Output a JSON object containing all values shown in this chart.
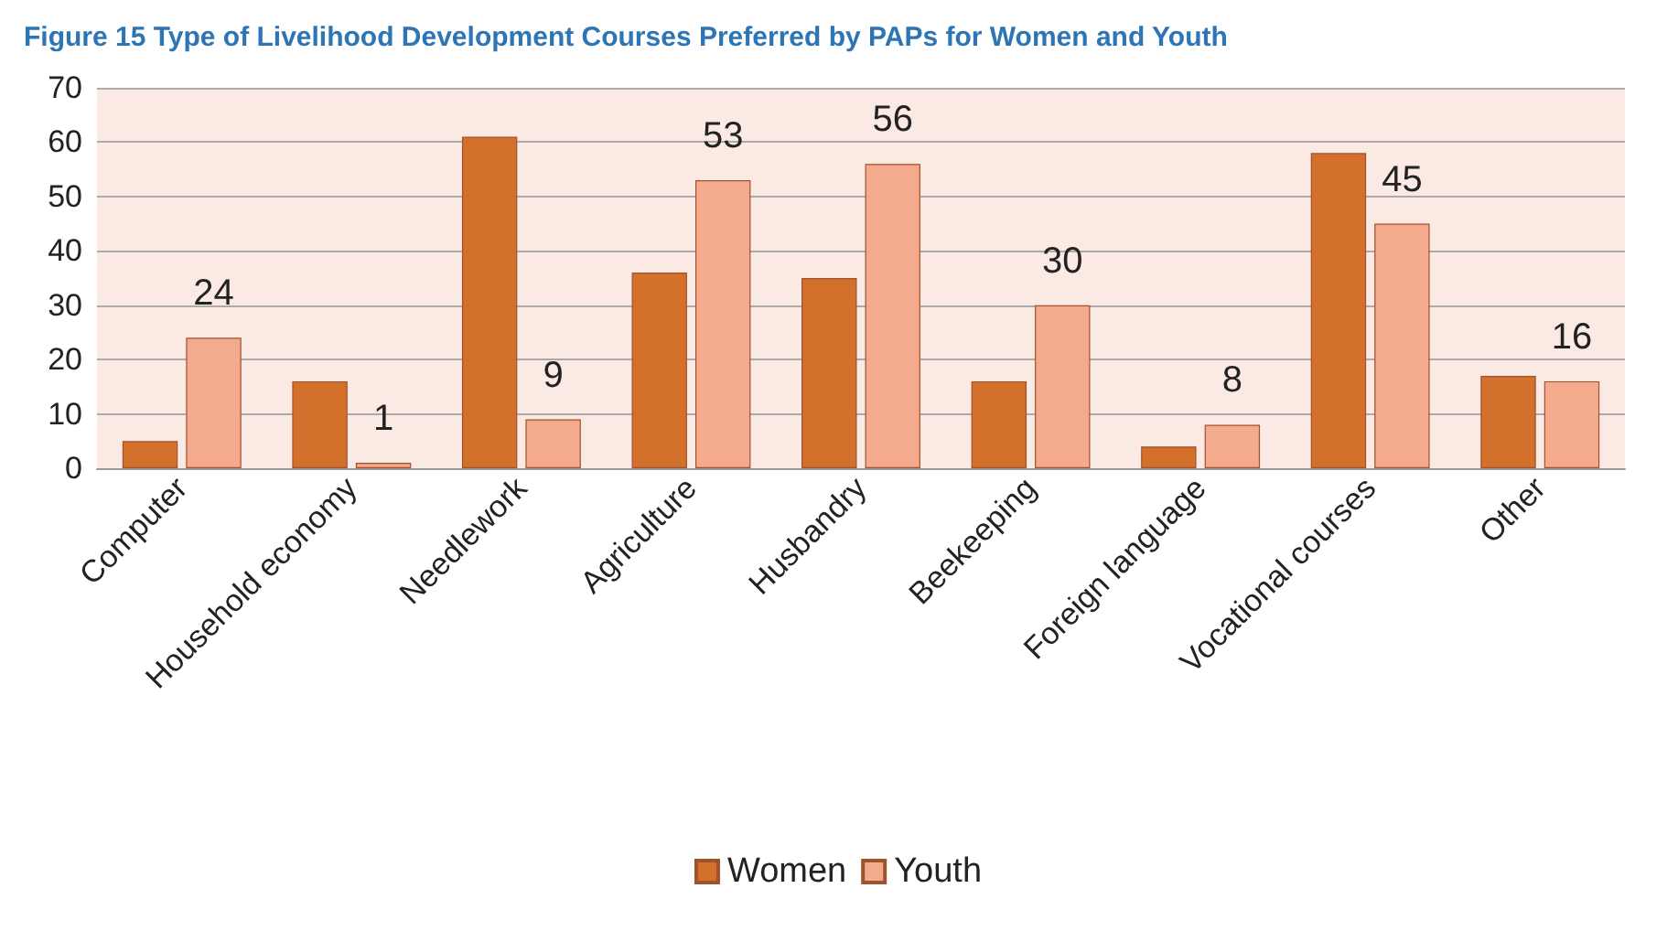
{
  "chart_data": {
    "type": "bar",
    "title": "Figure 15 Type of Livelihood Development Courses Preferred by PAPs for Women and Youth",
    "categories": [
      "Computer",
      "Household economy",
      "Needlework",
      "Agriculture",
      "Husbandry",
      "Beekeeping",
      "Foreign language",
      "Vocational courses",
      "Other"
    ],
    "series": [
      {
        "name": "Women",
        "color": "#d2702c",
        "values": [
          5,
          16,
          61,
          36,
          35,
          16,
          4,
          58,
          17
        ]
      },
      {
        "name": "Youth",
        "color": "#f4aa8c",
        "values": [
          24,
          1,
          9,
          53,
          56,
          30,
          8,
          45,
          16
        ],
        "value_labels": [
          "24",
          "1",
          "9",
          "53",
          "56",
          "30",
          "8",
          "45",
          "16"
        ]
      }
    ],
    "ylim": [
      0,
      70
    ],
    "yticks": [
      0,
      10,
      20,
      30,
      40,
      50,
      60,
      70
    ],
    "grid": "y",
    "legend": "bottom"
  }
}
